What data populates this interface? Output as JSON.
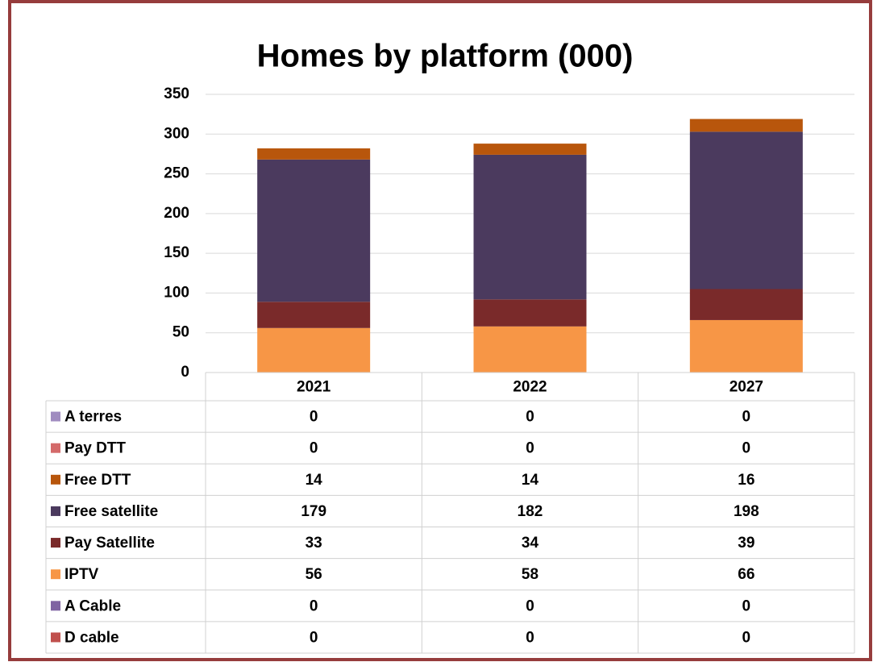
{
  "chart_data": {
    "type": "stacked_bar",
    "title": "Homes by platform (000)",
    "categories": [
      "2021",
      "2022",
      "2027"
    ],
    "series": [
      {
        "name": "A terres",
        "color": "#a08cc0",
        "values": [
          0,
          0,
          0
        ]
      },
      {
        "name": "Pay DTT",
        "color": "#d46a6a",
        "values": [
          0,
          0,
          0
        ]
      },
      {
        "name": "Free DTT",
        "color": "#b8560c",
        "values": [
          14,
          14,
          16
        ]
      },
      {
        "name": "Free satellite",
        "color": "#4b3a5e",
        "values": [
          179,
          182,
          198
        ]
      },
      {
        "name": "Pay Satellite",
        "color": "#7a2a2a",
        "values": [
          33,
          34,
          39
        ]
      },
      {
        "name": "IPTV",
        "color": "#f79646",
        "values": [
          56,
          58,
          66
        ]
      },
      {
        "name": "A Cable",
        "color": "#8064a2",
        "values": [
          0,
          0,
          0
        ]
      },
      {
        "name": "D cable",
        "color": "#c0504d",
        "values": [
          0,
          0,
          0
        ]
      }
    ],
    "ylim": [
      0,
      350
    ],
    "yticks": [
      0,
      50,
      100,
      150,
      200,
      250,
      300,
      350
    ],
    "grid": true
  }
}
